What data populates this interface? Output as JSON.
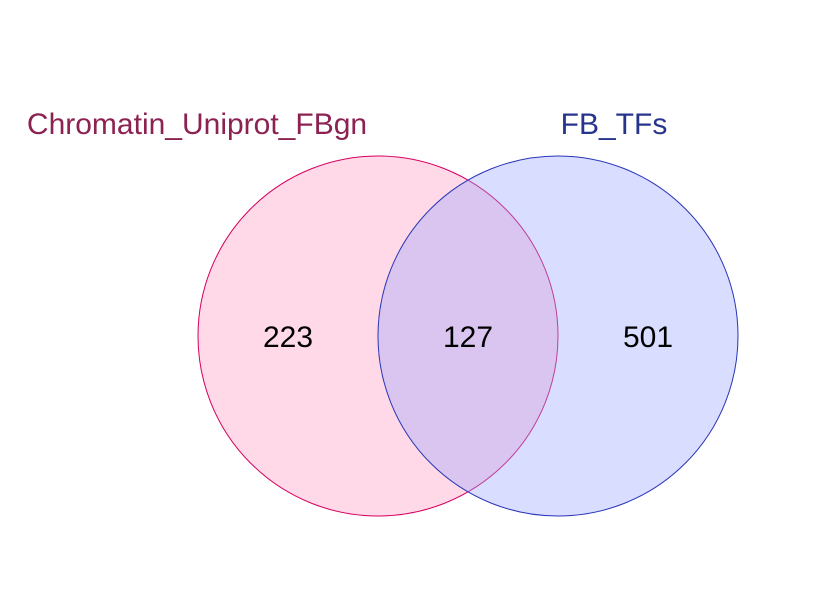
{
  "sets": [
    {
      "name": "Chromatin_Uniprot_FBgn",
      "label_color": "#8b2252",
      "fill_color": "#ff69a0",
      "stroke_color": "#d6005f"
    },
    {
      "name": "FB_TFs",
      "label_color": "#27348b",
      "fill_color": "#9aa5ff",
      "stroke_color": "#2a36b8"
    }
  ],
  "regions": {
    "only_left": "223",
    "intersection": "127",
    "only_right": "501"
  }
}
